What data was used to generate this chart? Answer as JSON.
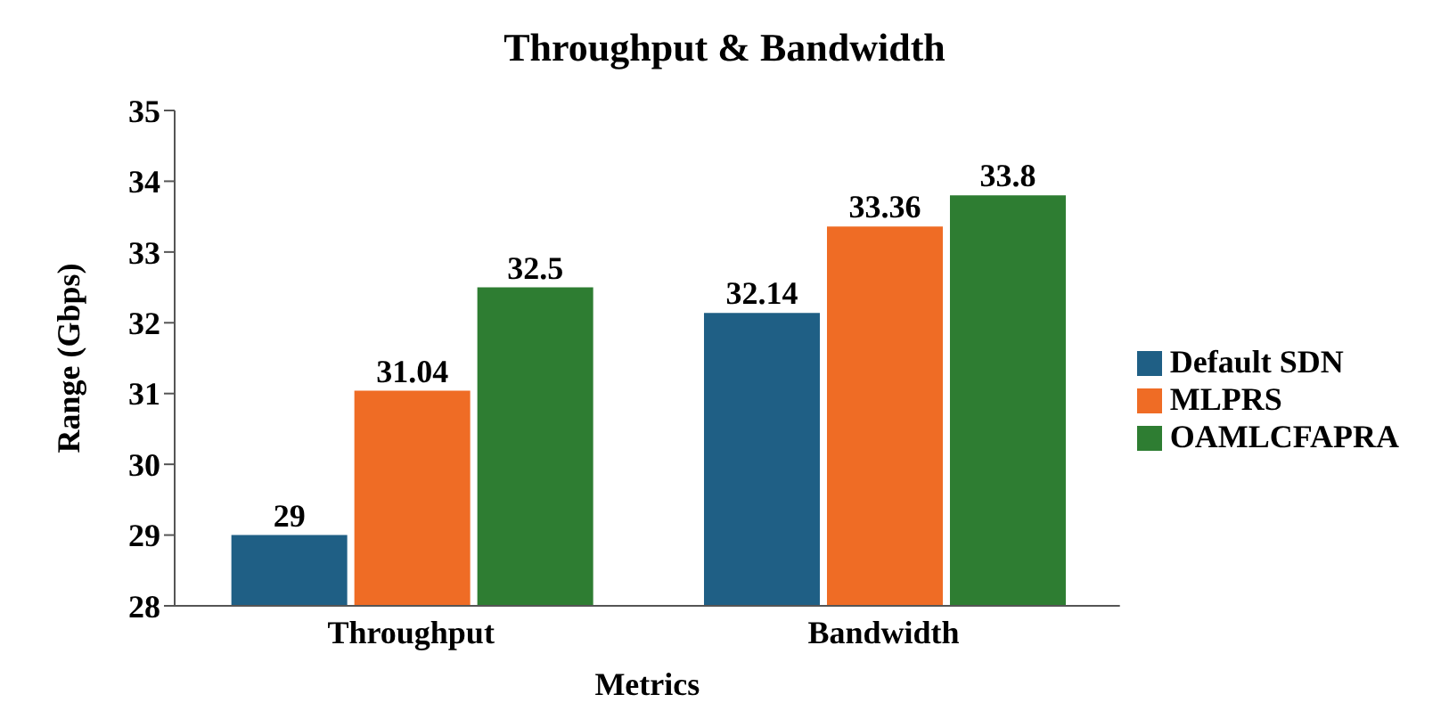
{
  "chart_data": {
    "type": "bar",
    "title": "Throughput  & Bandwidth",
    "xlabel": "Metrics",
    "ylabel": "Range (Gbps)",
    "categories": [
      "Throughput",
      "Bandwidth"
    ],
    "series": [
      {
        "name": "Default SDN",
        "color": "#1f5f85",
        "values": [
          29,
          32.14
        ]
      },
      {
        "name": "MLPRS",
        "color": "#ef6c25",
        "values": [
          31.04,
          33.36
        ]
      },
      {
        "name": "OAMLCFAPRA",
        "color": "#2e7d32",
        "values": [
          32.5,
          33.8
        ]
      }
    ],
    "ylim": [
      28,
      35
    ],
    "yticks": [
      28,
      29,
      30,
      31,
      32,
      33,
      34,
      35
    ],
    "grid": false,
    "legend": "right",
    "data_labels": true
  }
}
